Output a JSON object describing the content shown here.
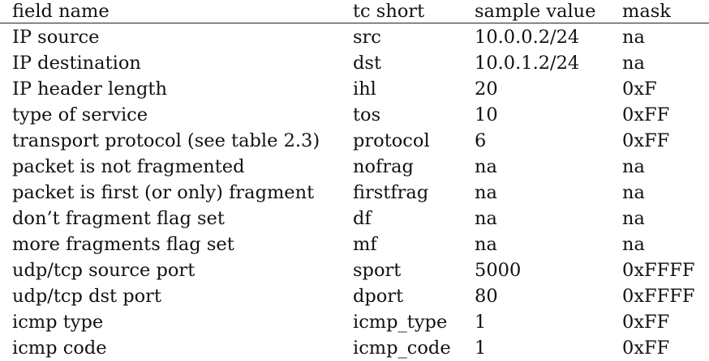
{
  "table": {
    "headers": [
      "field name",
      "tc short",
      "sample value",
      "mask"
    ],
    "rows": [
      [
        "IP source",
        "src",
        "10.0.0.2/24",
        "na"
      ],
      [
        "IP destination",
        "dst",
        "10.0.1.2/24",
        "na"
      ],
      [
        "IP header length",
        "ihl",
        "20",
        "0xF"
      ],
      [
        "type of service",
        "tos",
        "10",
        "0xFF"
      ],
      [
        "transport protocol (see table 2.3)",
        "protocol",
        "6",
        "0xFF"
      ],
      [
        "packet is not fragmented",
        "nofrag",
        "na",
        "na"
      ],
      [
        "packet is first (or only) fragment",
        "firstfrag",
        "na",
        "na"
      ],
      [
        "don’t fragment flag set",
        "df",
        "na",
        "na"
      ],
      [
        "more fragments flag set",
        "mf",
        "na",
        "na"
      ],
      [
        "udp/tcp source port",
        "sport",
        "5000",
        "0xFFFF"
      ],
      [
        "udp/tcp dst port",
        "dport",
        "80",
        "0xFFFF"
      ],
      [
        "icmp type",
        "icmp_type",
        "1",
        "0xFF"
      ],
      [
        "icmp code",
        "icmp_code",
        "1",
        "0xFF"
      ]
    ]
  }
}
